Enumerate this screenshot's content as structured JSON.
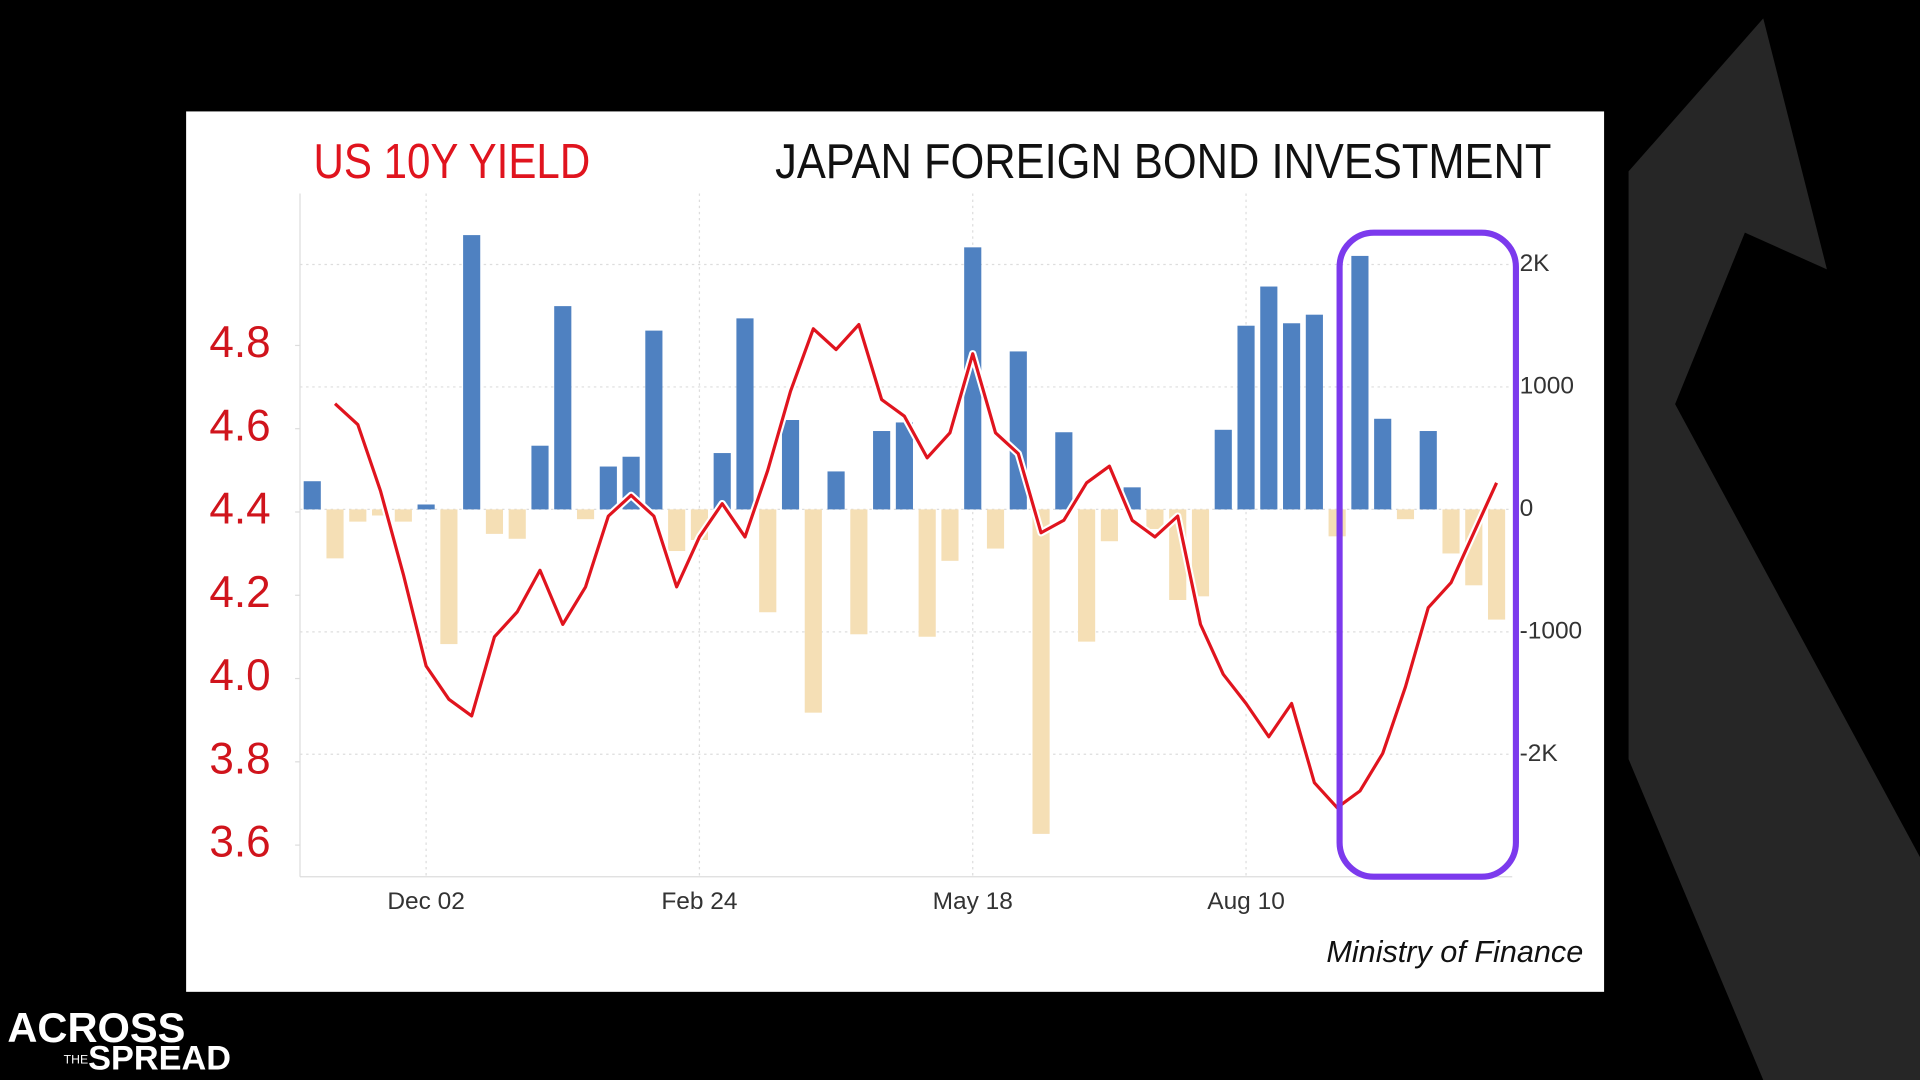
{
  "chart_data": {
    "type": "combo",
    "categories": [
      null,
      null,
      null,
      null,
      null,
      "Dec 02",
      null,
      null,
      null,
      null,
      null,
      null,
      null,
      null,
      null,
      null,
      null,
      "Feb 24",
      null,
      null,
      null,
      null,
      null,
      null,
      null,
      null,
      null,
      null,
      null,
      "May 18",
      null,
      null,
      null,
      null,
      null,
      null,
      null,
      null,
      null,
      null,
      null,
      "Aug 10",
      null,
      null,
      null,
      null,
      null,
      null,
      null,
      null,
      null,
      null,
      null
    ],
    "series": [
      {
        "name": "JAPAN FOREIGN BOND INVESTMENT",
        "type": "bar",
        "axis": "y2",
        "color": "#4f81c1",
        "negative_color": "#f5dfb5",
        "values": [
          230,
          -400,
          -100,
          -50,
          -100,
          40,
          -1100,
          2240,
          -200,
          -240,
          520,
          1660,
          -80,
          350,
          430,
          1460,
          -340,
          -250,
          460,
          1560,
          -840,
          730,
          -1660,
          310,
          -1020,
          640,
          710,
          -1040,
          -420,
          2140,
          -320,
          1290,
          -2650,
          630,
          -1080,
          -260,
          180,
          -160,
          -740,
          -710,
          650,
          1500,
          1820,
          1520,
          1590,
          -220,
          2070,
          740,
          -80,
          640,
          -360,
          -620,
          -900
        ]
      },
      {
        "name": "US 10Y YIELD",
        "type": "line",
        "axis": "y",
        "color": "#e0141e",
        "values": [
          null,
          4.66,
          4.61,
          4.45,
          4.25,
          4.03,
          3.95,
          3.91,
          4.1,
          4.16,
          4.26,
          4.13,
          4.22,
          4.39,
          4.44,
          4.39,
          4.22,
          4.34,
          4.42,
          4.34,
          4.5,
          4.69,
          4.84,
          4.79,
          4.85,
          4.67,
          4.63,
          4.53,
          4.59,
          4.78,
          4.59,
          4.54,
          4.35,
          4.38,
          4.47,
          4.51,
          4.38,
          4.34,
          4.39,
          4.13,
          4.01,
          3.94,
          3.86,
          3.94,
          3.75,
          3.69,
          3.73,
          3.82,
          3.98,
          4.17,
          4.23,
          4.35,
          4.47
        ]
      }
    ],
    "ylim": [
      3.524,
      5.165
    ],
    "yticks": [
      3.6,
      3.8,
      {
        "value": 4,
        "label": "4.0"
      },
      4.2,
      4.4,
      4.6,
      4.8
    ],
    "y2lim": [
      -3000,
      2580
    ],
    "y2ticks": [
      {
        "value": -2000,
        "label": "-2K"
      },
      -1000,
      0,
      1000,
      {
        "value": 2000,
        "label": "2K"
      }
    ],
    "grid": true,
    "source": "Ministry of Finance"
  },
  "logo": {
    "top": "ACROSS",
    "small": "THE",
    "bottom": "SPREAD"
  }
}
